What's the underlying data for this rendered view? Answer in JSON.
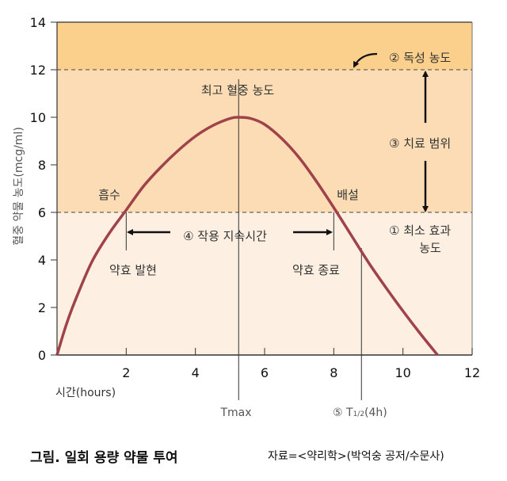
{
  "chart_data": {
    "type": "line",
    "title": "",
    "xlabel": "시간(hours)",
    "ylabel": "혈중 약물 농도(mcg/ml)",
    "xlim": [
      0,
      12
    ],
    "ylim": [
      0,
      14
    ],
    "x_ticks": [
      "2",
      "4",
      "6",
      "8",
      "10",
      "12"
    ],
    "y_ticks": [
      "0",
      "2",
      "4",
      "6",
      "8",
      "10",
      "12",
      "14"
    ],
    "series": [
      {
        "name": "blood concentration",
        "color": "#a0424a",
        "x": [
          0,
          0.25,
          0.5,
          1,
          1.5,
          2,
          2.5,
          3,
          3.5,
          4,
          4.5,
          5,
          5.25,
          5.6,
          6,
          6.5,
          7,
          7.5,
          8,
          8.5,
          9,
          9.5,
          10,
          10.5,
          11
        ],
        "y": [
          0,
          1.2,
          2.2,
          3.9,
          5.1,
          6.1,
          7.1,
          7.9,
          8.6,
          9.2,
          9.65,
          9.95,
          10,
          9.95,
          9.7,
          9.1,
          8.3,
          7.3,
          6.2,
          5.05,
          3.9,
          2.85,
          1.85,
          0.9,
          0
        ]
      }
    ],
    "bands": [
      {
        "from": 0,
        "to": 6,
        "color": "#fdf0e2"
      },
      {
        "from": 6,
        "to": 12,
        "color": "#fcdcb4"
      },
      {
        "from": 12,
        "to": 14,
        "color": "#fbcf8c"
      }
    ],
    "reference_lines": {
      "min_effective": 6,
      "toxic": 12,
      "tmax": 5.25,
      "t_half": 8.8,
      "onset": 2,
      "end": 8
    },
    "annotations": {
      "peak": "최고 혈중 농도",
      "absorption": "흡수",
      "excretion": "배설",
      "duration": "④ 작용 지속시간",
      "onset": "약효 발현",
      "end": "약효 종료",
      "toxic": "② 독성 농도",
      "therapeutic": "③ 치료 범위",
      "min_effective_1": "① 최소 효과",
      "min_effective_2": "농도",
      "tmax": "Tmax",
      "t_half_prefix": "⑤ T",
      "t_half_sub": "1/2",
      "t_half_suffix": "(4h)"
    }
  },
  "caption": {
    "title": "그림. 일회 용량 약물 투여",
    "source": "자료=<약리학>(박억숭 공저/수문사)"
  }
}
